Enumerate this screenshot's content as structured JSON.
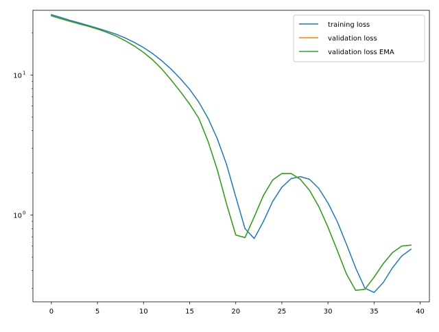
{
  "chart_data": {
    "type": "line",
    "title": "",
    "xlabel": "",
    "ylabel": "",
    "yscale": "log",
    "xlim": [
      -2,
      41
    ],
    "ylim": [
      0.24,
      29
    ],
    "grid": false,
    "legend_position": "top-right",
    "x_ticks": [
      {
        "value": 0,
        "label": "0"
      },
      {
        "value": 5,
        "label": "5"
      },
      {
        "value": 10,
        "label": "10"
      },
      {
        "value": 15,
        "label": "15"
      },
      {
        "value": 20,
        "label": "20"
      },
      {
        "value": 25,
        "label": "25"
      },
      {
        "value": 30,
        "label": "30"
      },
      {
        "value": 35,
        "label": "35"
      },
      {
        "value": 40,
        "label": "40"
      }
    ],
    "y_ticks": [
      {
        "value": 1,
        "base": "10",
        "exp": "0"
      },
      {
        "value": 10,
        "base": "10",
        "exp": "1"
      }
    ],
    "y_minor_ticks": [
      0.3,
      0.4,
      0.5,
      0.6,
      0.7,
      0.8,
      0.9,
      2,
      3,
      4,
      5,
      6,
      7,
      8,
      9,
      20
    ],
    "x": [
      0,
      1,
      2,
      3,
      4,
      5,
      6,
      7,
      8,
      9,
      10,
      11,
      12,
      13,
      14,
      15,
      16,
      17,
      18,
      19,
      20,
      21,
      22,
      23,
      24,
      25,
      26,
      27,
      28,
      29,
      30,
      31,
      32,
      33,
      34,
      35,
      36,
      37,
      38,
      39
    ],
    "series": [
      {
        "name": "training loss",
        "color": "#1f77b4",
        "values": [
          27.0,
          25.8,
          24.6,
          23.6,
          22.6,
          21.6,
          20.6,
          19.6,
          18.4,
          17.1,
          15.7,
          14.2,
          12.6,
          11.0,
          9.4,
          7.9,
          6.4,
          4.9,
          3.5,
          2.3,
          1.35,
          0.8,
          0.68,
          0.9,
          1.25,
          1.58,
          1.82,
          1.88,
          1.8,
          1.55,
          1.22,
          0.9,
          0.62,
          0.42,
          0.3,
          0.28,
          0.33,
          0.42,
          0.51,
          0.57
        ]
      },
      {
        "name": "validation loss",
        "color": "#ff7f0e",
        "values": [
          26.5,
          25.3,
          24.2,
          23.2,
          22.3,
          21.3,
          20.2,
          19.0,
          17.6,
          16.1,
          14.5,
          12.8,
          11.0,
          9.2,
          7.6,
          6.2,
          4.9,
          3.35,
          2.1,
          1.2,
          0.72,
          0.69,
          0.97,
          1.38,
          1.78,
          1.98,
          1.98,
          1.8,
          1.5,
          1.15,
          0.82,
          0.56,
          0.38,
          0.29,
          0.295,
          0.36,
          0.45,
          0.54,
          0.6,
          0.61
        ]
      },
      {
        "name": "validation loss EMA",
        "color": "#2ca02c",
        "values": [
          26.5,
          25.3,
          24.2,
          23.2,
          22.3,
          21.3,
          20.2,
          19.0,
          17.6,
          16.1,
          14.5,
          12.8,
          11.0,
          9.2,
          7.6,
          6.2,
          4.9,
          3.35,
          2.1,
          1.2,
          0.72,
          0.69,
          0.97,
          1.38,
          1.78,
          1.98,
          1.98,
          1.8,
          1.5,
          1.15,
          0.82,
          0.56,
          0.38,
          0.29,
          0.295,
          0.36,
          0.45,
          0.54,
          0.6,
          0.61
        ]
      }
    ]
  }
}
